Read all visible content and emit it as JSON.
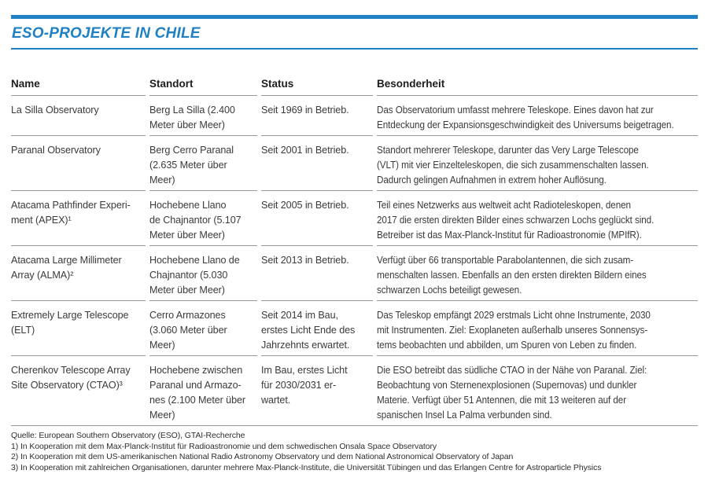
{
  "title": "ESO-PROJEKTE IN CHILE",
  "colors": {
    "accent_blue": "#1f80c3",
    "rule_gray": "#999999",
    "body_text": "#3a3a3a"
  },
  "table": {
    "columns": [
      {
        "key": "name",
        "label": "Name"
      },
      {
        "key": "standort",
        "label": "Standort"
      },
      {
        "key": "status",
        "label": "Status"
      },
      {
        "key": "besonderheit",
        "label": "Besonderheit"
      }
    ],
    "rows": [
      {
        "name": "La Silla Observatory",
        "standort": "Berg La Silla (2.400\nMeter über Meer)",
        "status": "Seit 1969 in Betrieb.",
        "besonderheit": "Das Observatorium umfasst mehrere Teleskope. Eines davon hat zur\nEntdeckung der Expansionsgeschwindigkeit des Universums beigetragen."
      },
      {
        "name": "Paranal Observatory",
        "standort": "Berg Cerro Paranal\n(2.635 Meter über\nMeer)",
        "status": "Seit 2001 in Betrieb.",
        "besonderheit": "Standort mehrerer Teleskope, darunter das Very Large Telescope\n(VLT) mit vier Einzelteleskopen, die sich zusammenschalten lassen.\nDadurch gelingen Aufnahmen in extrem hoher Auflösung."
      },
      {
        "name": "Atacama Pathfinder Experi-\nment (APEX)¹",
        "standort": "Hochebene Llano\nde Chajnantor (5.107\nMeter über Meer)",
        "status": "Seit 2005 in Betrieb.",
        "besonderheit": "Teil eines Netzwerks aus weltweit acht Radioteleskopen, denen\n2017 die ersten direkten Bilder eines schwarzen Lochs geglückt sind.\nBetreiber ist das Max-Planck-Institut für Radioastronomie (MPIfR)."
      },
      {
        "name": "Atacama Large Millimeter\nArray (ALMA)²",
        "standort": "Hochebene Llano de\nChajnantor (5.030\nMeter über Meer)",
        "status": "Seit 2013 in Betrieb.",
        "besonderheit": "Verfügt über 66 transportable Parabolantennen, die sich zusam-\nmenschalten lassen. Ebenfalls an den ersten direkten Bildern eines\nschwarzen Lochs beteiligt gewesen."
      },
      {
        "name": "Extremely Large Telescope\n(ELT)",
        "standort": "Cerro Armazones\n(3.060 Meter über\nMeer)",
        "status": "Seit 2014 im Bau,\nerstes Licht Ende des\nJahrzehnts erwartet.",
        "besonderheit": "Das Teleskop empfängt 2029 erstmals Licht ohne Instrumente, 2030\nmit Instrumenten. Ziel: Exoplaneten außerhalb unseres Sonnensys-\ntems beobachten und abbilden, um Spuren von Leben zu finden."
      },
      {
        "name": "Cherenkov Telescope Array\nSite Observatory (CTAO)³",
        "standort": "Hochebene zwischen\nParanal und Armazo-\nnes (2.100 Meter über\nMeer)",
        "status": "Im Bau, erstes Licht\nfür 2030/2031 er-\nwartet.",
        "besonderheit": "Die ESO betreibt das südliche CTAO in der Nähe von Paranal. Ziel:\nBeobachtung von Sternenexplosionen (Supernovas) und dunkler\nMaterie. Verfügt über 51 Antennen, die mit 13 weiteren auf der\nspanischen Insel La Palma verbunden sind."
      }
    ]
  },
  "footer": {
    "source": "Quelle: European Southern Observatory (ESO), GTAI-Recherche",
    "notes": [
      "1) In Kooperation mit dem Max-Planck-Institut für Radioastronomie und dem schwedischen Onsala Space Observatory",
      "2) In Kooperation mit dem US-amerikanischen National Radio Astronomy Observatory und dem National Astronomical Observatory of Japan",
      "3) In Kooperation mit zahlreichen Organisationen, darunter mehrere Max-Planck-Institute, die Universität Tübingen und das Erlangen Centre for Astroparticle Physics"
    ]
  }
}
